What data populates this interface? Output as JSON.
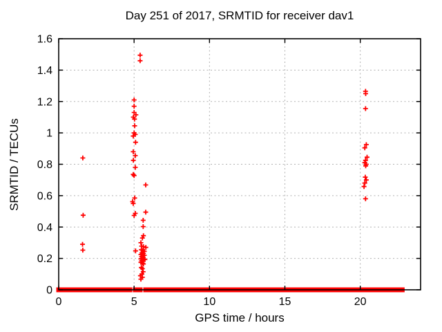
{
  "window": {
    "title": "Day 251 of 2017, SRMTID for receiver dav1"
  },
  "chart_data": {
    "type": "scatter",
    "title": "Day 251 of 2017, SRMTID for receiver dav1",
    "xlabel": "GPS time / hours",
    "ylabel": "SRMTID / TECUs",
    "xlim": [
      0,
      24
    ],
    "ylim": [
      0,
      1.6
    ],
    "xticks": {
      "values": [
        0,
        5,
        10,
        15,
        20
      ],
      "labels": [
        "0",
        "5",
        "10",
        "15",
        "20"
      ]
    },
    "yticks": {
      "values": [
        0,
        0.2,
        0.4,
        0.6,
        0.8,
        1.0,
        1.2,
        1.4,
        1.6
      ],
      "labels": [
        "0",
        "0.2",
        "0.4",
        "0.6",
        "0.8",
        "1",
        "1.2",
        "1.4",
        "1.6"
      ]
    },
    "grid": true,
    "legend": "none",
    "marker": {
      "shape": "plus",
      "size": 7,
      "color": "#ff0000"
    },
    "colors": {
      "marker": "#ff0000",
      "grid": "#b0b0b0",
      "border": "#000000",
      "background": "#ffffff"
    },
    "baseline_y": 0,
    "baseline_segments": [
      [
        0.0,
        4.72
      ],
      [
        5.08,
        5.4
      ],
      [
        5.77,
        20.25
      ],
      [
        20.5,
        22.78
      ]
    ],
    "points": [
      [
        1.6,
        0.84
      ],
      [
        1.62,
        0.475
      ],
      [
        1.58,
        0.29
      ],
      [
        1.6,
        0.253
      ],
      [
        5.4,
        1.495
      ],
      [
        5.4,
        1.46
      ],
      [
        5.0,
        1.21
      ],
      [
        5.0,
        1.17
      ],
      [
        5.0,
        1.13
      ],
      [
        5.12,
        1.115
      ],
      [
        4.95,
        1.1
      ],
      [
        5.03,
        1.088
      ],
      [
        5.04,
        1.045
      ],
      [
        5.0,
        1.0
      ],
      [
        5.08,
        0.99
      ],
      [
        4.94,
        0.98
      ],
      [
        5.1,
        0.94
      ],
      [
        4.94,
        0.88
      ],
      [
        5.08,
        0.855
      ],
      [
        4.95,
        0.825
      ],
      [
        5.08,
        0.78
      ],
      [
        4.94,
        0.735
      ],
      [
        5.0,
        0.728
      ],
      [
        5.77,
        0.668
      ],
      [
        5.04,
        0.585
      ],
      [
        4.9,
        0.562
      ],
      [
        4.94,
        0.55
      ],
      [
        5.77,
        0.495
      ],
      [
        5.08,
        0.487
      ],
      [
        5.0,
        0.474
      ],
      [
        5.6,
        0.443
      ],
      [
        5.6,
        0.403
      ],
      [
        5.62,
        0.345
      ],
      [
        5.55,
        0.33
      ],
      [
        5.45,
        0.3
      ],
      [
        5.5,
        0.278
      ],
      [
        5.62,
        0.275
      ],
      [
        5.78,
        0.27
      ],
      [
        5.1,
        0.248
      ],
      [
        5.48,
        0.255
      ],
      [
        5.58,
        0.25
      ],
      [
        5.68,
        0.245
      ],
      [
        5.52,
        0.235
      ],
      [
        5.62,
        0.232
      ],
      [
        5.45,
        0.225
      ],
      [
        5.57,
        0.222
      ],
      [
        5.68,
        0.22
      ],
      [
        5.5,
        0.212
      ],
      [
        5.6,
        0.208
      ],
      [
        5.53,
        0.2
      ],
      [
        5.45,
        0.197
      ],
      [
        5.65,
        0.195
      ],
      [
        5.72,
        0.193
      ],
      [
        5.5,
        0.185
      ],
      [
        5.6,
        0.182
      ],
      [
        5.45,
        0.175
      ],
      [
        5.55,
        0.17
      ],
      [
        5.62,
        0.165
      ],
      [
        5.48,
        0.142
      ],
      [
        5.55,
        0.135
      ],
      [
        5.6,
        0.115
      ],
      [
        5.52,
        0.1
      ],
      [
        5.42,
        0.09
      ],
      [
        5.55,
        0.08
      ],
      [
        5.45,
        0.068
      ],
      [
        20.35,
        1.265
      ],
      [
        20.36,
        1.25
      ],
      [
        20.35,
        1.155
      ],
      [
        20.4,
        0.925
      ],
      [
        20.3,
        0.905
      ],
      [
        20.45,
        0.845
      ],
      [
        20.35,
        0.825
      ],
      [
        20.3,
        0.81
      ],
      [
        20.4,
        0.8
      ],
      [
        20.36,
        0.79
      ],
      [
        20.33,
        0.718
      ],
      [
        20.4,
        0.7
      ],
      [
        20.3,
        0.68
      ],
      [
        20.25,
        0.658
      ],
      [
        20.35,
        0.58
      ]
    ]
  }
}
